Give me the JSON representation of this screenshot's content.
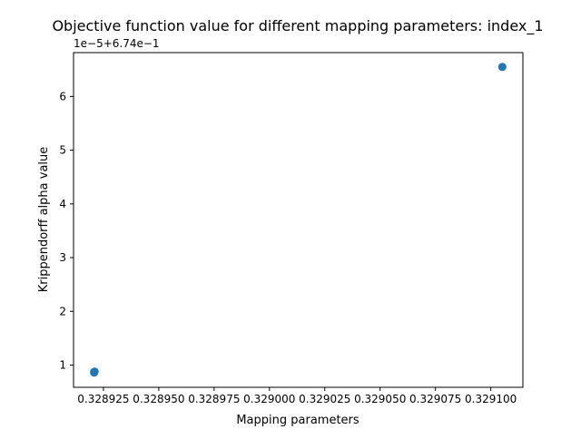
{
  "chart_data": {
    "type": "scatter",
    "title": "Objective function value for different mapping parameters: index_1",
    "xlabel": "Mapping parameters",
    "ylabel": "Krippendorff alpha value",
    "y_offset_text": "1e−5+6.74e−1",
    "xlim": [
      0.3289115,
      0.3291145
    ],
    "ylim": [
      0.5861,
      6.8161
    ],
    "x_ticks": [
      0.328925,
      0.32895,
      0.328975,
      0.329,
      0.329025,
      0.32905,
      0.329075,
      0.3291
    ],
    "x_tick_labels": [
      "0.328925",
      "0.328950",
      "0.328975",
      "0.329000",
      "0.329025",
      "0.329050",
      "0.329075",
      "0.329100"
    ],
    "y_ticks": [
      1,
      2,
      3,
      4,
      5,
      6
    ],
    "y_tick_labels": [
      "1",
      "2",
      "3",
      "4",
      "5",
      "6"
    ],
    "y_units_note": "y values shown in tick units of 1e-5 with offset 6.74e-1",
    "series": [
      {
        "color": "#1f77b4",
        "points": [
          {
            "x": 0.3289208,
            "y": 0.87
          },
          {
            "x": 0.3289208,
            "y": 0.86
          },
          {
            "x": 0.328921,
            "y": 0.88
          },
          {
            "x": 0.3291052,
            "y": 6.55
          }
        ]
      }
    ],
    "grid": false,
    "legend": "none"
  }
}
